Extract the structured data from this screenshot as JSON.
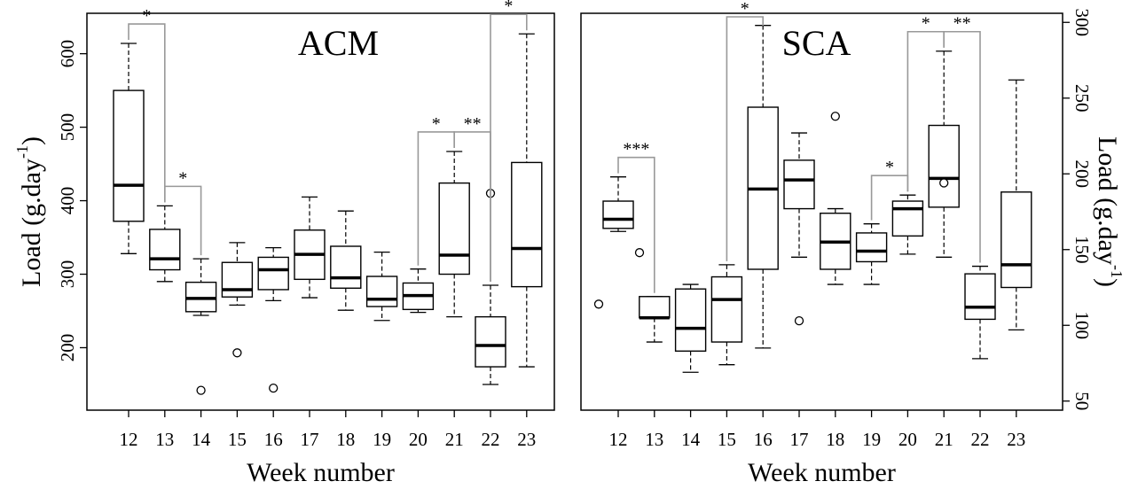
{
  "chart_data": [
    {
      "type": "box",
      "title": "ACM",
      "xlabel": "Week number",
      "ylabel": "Load (g.day",
      "ylabel_sup": "-1",
      "ylabel_close": ")",
      "ylabel_side": "left",
      "ylim": [
        115,
        655
      ],
      "yticks": [
        200,
        300,
        400,
        500,
        600
      ],
      "categories": [
        "12",
        "13",
        "14",
        "15",
        "16",
        "17",
        "18",
        "19",
        "20",
        "21",
        "22",
        "23"
      ],
      "boxes": [
        {
          "min": 328,
          "q1": 372,
          "median": 421,
          "q3": 550,
          "max": 614,
          "outliers": []
        },
        {
          "min": 290,
          "q1": 306,
          "median": 321,
          "q3": 361,
          "max": 393,
          "outliers": []
        },
        {
          "min": 244,
          "q1": 249,
          "median": 267,
          "q3": 289,
          "max": 321,
          "outliers": [
            142
          ]
        },
        {
          "min": 258,
          "q1": 269,
          "median": 279,
          "q3": 316,
          "max": 343,
          "outliers": [
            193
          ]
        },
        {
          "min": 264,
          "q1": 279,
          "median": 306,
          "q3": 323,
          "max": 336,
          "outliers": [
            145
          ]
        },
        {
          "min": 268,
          "q1": 293,
          "median": 327,
          "q3": 360,
          "max": 405,
          "outliers": []
        },
        {
          "min": 251,
          "q1": 281,
          "median": 295,
          "q3": 338,
          "max": 386,
          "outliers": []
        },
        {
          "min": 237,
          "q1": 256,
          "median": 266,
          "q3": 297,
          "max": 330,
          "outliers": []
        },
        {
          "min": 248,
          "q1": 252,
          "median": 271,
          "q3": 288,
          "max": 307,
          "outliers": []
        },
        {
          "min": 242,
          "q1": 300,
          "median": 326,
          "q3": 424,
          "max": 467,
          "outliers": []
        },
        {
          "min": 150,
          "q1": 174,
          "median": 203,
          "q3": 242,
          "max": 285,
          "outliers": [
            410
          ]
        },
        {
          "min": 174,
          "q1": 283,
          "median": 335,
          "q3": 452,
          "max": 627,
          "outliers": []
        }
      ],
      "significance": [
        {
          "from": "12",
          "to": "13",
          "label": "*"
        },
        {
          "from": "13",
          "to": "14",
          "label": "*"
        },
        {
          "from": "20",
          "to": "21",
          "label": "*"
        },
        {
          "from": "21",
          "to": "22",
          "label": "**"
        },
        {
          "from": "22",
          "to": "23",
          "label": "*"
        }
      ]
    },
    {
      "type": "box",
      "title": "SCA",
      "xlabel": "Week number",
      "ylabel": "Load (g.day",
      "ylabel_sup": "-1",
      "ylabel_close": ")",
      "ylabel_side": "right",
      "ylim": [
        44,
        306
      ],
      "yticks": [
        50,
        100,
        150,
        200,
        250,
        300
      ],
      "categories": [
        "12",
        "13",
        "14",
        "15",
        "16",
        "17",
        "18",
        "19",
        "20",
        "21",
        "22",
        "23"
      ],
      "boxes": [
        {
          "min": 162,
          "q1": 164,
          "median": 170,
          "q3": 182,
          "max": 198,
          "outliers": [
            114,
            148
          ]
        },
        {
          "min": 89,
          "q1": 105,
          "median": 105,
          "q3": 119,
          "max": 119,
          "outliers": []
        },
        {
          "min": 69,
          "q1": 83,
          "median": 98,
          "q3": 124,
          "max": 127,
          "outliers": []
        },
        {
          "min": 74,
          "q1": 89,
          "median": 117,
          "q3": 132,
          "max": 140,
          "outliers": []
        },
        {
          "min": 85,
          "q1": 137,
          "median": 190,
          "q3": 244,
          "max": 298,
          "outliers": []
        },
        {
          "min": 145,
          "q1": 177,
          "median": 196,
          "q3": 209,
          "max": 227,
          "outliers": [
            103
          ]
        },
        {
          "min": 127,
          "q1": 137,
          "median": 155,
          "q3": 174,
          "max": 177,
          "outliers": [
            238
          ]
        },
        {
          "min": 127,
          "q1": 142,
          "median": 149,
          "q3": 161,
          "max": 167,
          "outliers": []
        },
        {
          "min": 147,
          "q1": 159,
          "median": 177,
          "q3": 182,
          "max": 186,
          "outliers": []
        },
        {
          "min": 145,
          "q1": 178,
          "median": 197,
          "q3": 232,
          "max": 281,
          "outliers": [
            194
          ]
        },
        {
          "min": 78,
          "q1": 104,
          "median": 112,
          "q3": 134,
          "max": 139,
          "outliers": []
        },
        {
          "min": 97,
          "q1": 125,
          "median": 140,
          "q3": 188,
          "max": 262,
          "outliers": []
        }
      ],
      "significance": [
        {
          "from": "12",
          "to": "13",
          "label": "***"
        },
        {
          "from": "15",
          "to": "16",
          "label": "*"
        },
        {
          "from": "19",
          "to": "20",
          "label": "*"
        },
        {
          "from": "20",
          "to": "21",
          "label": "*"
        },
        {
          "from": "21",
          "to": "22",
          "label": "**"
        }
      ]
    }
  ]
}
